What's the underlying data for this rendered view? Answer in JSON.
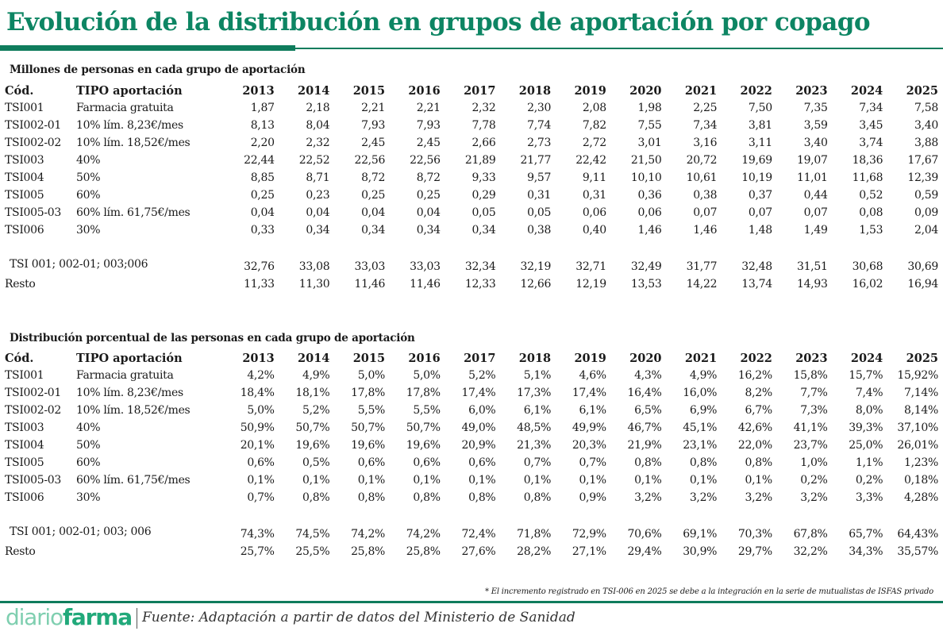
{
  "title": "Evolución de la distribución en grupos de aportación por copago",
  "colors": {
    "brand_green": "#0d8563",
    "logo_light": "#7fcfb0",
    "logo_bold": "#21a97a"
  },
  "table_millions": {
    "heading": "Millones de personas en cada grupo de aportación",
    "headers": {
      "code": "Cód.",
      "type": "TIPO aportación",
      "years": [
        "2013",
        "2014",
        "2015",
        "2016",
        "2017",
        "2018",
        "2019",
        "2020",
        "2021",
        "2022",
        "2023",
        "2024",
        "2025"
      ]
    },
    "rows": [
      {
        "code": "TSI001",
        "type": "Farmacia gratuita",
        "values": [
          "1,87",
          "2,18",
          "2,21",
          "2,21",
          "2,32",
          "2,30",
          "2,08",
          "1,98",
          "2,25",
          "7,50",
          "7,35",
          "7,34",
          "7,58"
        ]
      },
      {
        "code": "TSI002-01",
        "type": "10% lím. 8,23€/mes",
        "values": [
          "8,13",
          "8,04",
          "7,93",
          "7,93",
          "7,78",
          "7,74",
          "7,82",
          "7,55",
          "7,34",
          "3,81",
          "3,59",
          "3,45",
          "3,40"
        ]
      },
      {
        "code": "TSI002-02",
        "type": "10% lím. 18,52€/mes",
        "values": [
          "2,20",
          "2,32",
          "2,45",
          "2,45",
          "2,66",
          "2,73",
          "2,72",
          "3,01",
          "3,16",
          "3,11",
          "3,40",
          "3,74",
          "3,88"
        ]
      },
      {
        "code": "TSI003",
        "type": "40%",
        "values": [
          "22,44",
          "22,52",
          "22,56",
          "22,56",
          "21,89",
          "21,77",
          "22,42",
          "21,50",
          "20,72",
          "19,69",
          "19,07",
          "18,36",
          "17,67"
        ]
      },
      {
        "code": "TSI004",
        "type": "50%",
        "values": [
          "8,85",
          "8,71",
          "8,72",
          "8,72",
          "9,33",
          "9,57",
          "9,11",
          "10,10",
          "10,61",
          "10,19",
          "11,01",
          "11,68",
          "12,39"
        ]
      },
      {
        "code": "TSI005",
        "type": "60%",
        "values": [
          "0,25",
          "0,23",
          "0,25",
          "0,25",
          "0,29",
          "0,31",
          "0,31",
          "0,36",
          "0,38",
          "0,37",
          "0,44",
          "0,52",
          "0,59"
        ]
      },
      {
        "code": "TSI005-03",
        "type": "60% lím. 61,75€/mes",
        "values": [
          "0,04",
          "0,04",
          "0,04",
          "0,04",
          "0,05",
          "0,05",
          "0,06",
          "0,06",
          "0,07",
          "0,07",
          "0,07",
          "0,08",
          "0,09"
        ]
      },
      {
        "code": "TSI006",
        "type": "30%",
        "values": [
          "0,33",
          "0,34",
          "0,34",
          "0,34",
          "0,34",
          "0,38",
          "0,40",
          "1,46",
          "1,46",
          "1,48",
          "1,49",
          "1,53",
          "2,04"
        ]
      }
    ],
    "totals": [
      {
        "label": "TSI 001; 002-01; 003;006",
        "values": [
          "32,76",
          "33,08",
          "33,03",
          "33,03",
          "32,34",
          "32,19",
          "32,71",
          "32,49",
          "31,77",
          "32,48",
          "31,51",
          "30,68",
          "30,69"
        ]
      },
      {
        "label": "Resto",
        "values": [
          "11,33",
          "11,30",
          "11,46",
          "11,46",
          "12,33",
          "12,66",
          "12,19",
          "13,53",
          "14,22",
          "13,74",
          "14,93",
          "16,02",
          "16,94"
        ]
      }
    ]
  },
  "table_percent": {
    "heading": "Distribución porcentual de las personas en cada grupo de aportación",
    "headers": {
      "code": "Cód.",
      "type": "TIPO aportación",
      "years": [
        "2013",
        "2014",
        "2015",
        "2016",
        "2017",
        "2018",
        "2019",
        "2020",
        "2021",
        "2022",
        "2023",
        "2024",
        "2025"
      ]
    },
    "rows": [
      {
        "code": "TSI001",
        "type": "Farmacia gratuita",
        "values": [
          "4,2%",
          "4,9%",
          "5,0%",
          "5,0%",
          "5,2%",
          "5,1%",
          "4,6%",
          "4,3%",
          "4,9%",
          "16,2%",
          "15,8%",
          "15,7%",
          "15,92%"
        ]
      },
      {
        "code": "TSI002-01",
        "type": "10% lím. 8,23€/mes",
        "values": [
          "18,4%",
          "18,1%",
          "17,8%",
          "17,8%",
          "17,4%",
          "17,3%",
          "17,4%",
          "16,4%",
          "16,0%",
          "8,2%",
          "7,7%",
          "7,4%",
          "7,14%"
        ]
      },
      {
        "code": "TSI002-02",
        "type": "10% lím. 18,52€/mes",
        "values": [
          "5,0%",
          "5,2%",
          "5,5%",
          "5,5%",
          "6,0%",
          "6,1%",
          "6,1%",
          "6,5%",
          "6,9%",
          "6,7%",
          "7,3%",
          "8,0%",
          "8,14%"
        ]
      },
      {
        "code": "TSI003",
        "type": "40%",
        "values": [
          "50,9%",
          "50,7%",
          "50,7%",
          "50,7%",
          "49,0%",
          "48,5%",
          "49,9%",
          "46,7%",
          "45,1%",
          "42,6%",
          "41,1%",
          "39,3%",
          "37,10%"
        ]
      },
      {
        "code": "TSI004",
        "type": "50%",
        "values": [
          "20,1%",
          "19,6%",
          "19,6%",
          "19,6%",
          "20,9%",
          "21,3%",
          "20,3%",
          "21,9%",
          "23,1%",
          "22,0%",
          "23,7%",
          "25,0%",
          "26,01%"
        ]
      },
      {
        "code": "TSI005",
        "type": "60%",
        "values": [
          "0,6%",
          "0,5%",
          "0,6%",
          "0,6%",
          "0,6%",
          "0,7%",
          "0,7%",
          "0,8%",
          "0,8%",
          "0,8%",
          "1,0%",
          "1,1%",
          "1,23%"
        ]
      },
      {
        "code": "TSI005-03",
        "type": "60% lím. 61,75€/mes",
        "values": [
          "0,1%",
          "0,1%",
          "0,1%",
          "0,1%",
          "0,1%",
          "0,1%",
          "0,1%",
          "0,1%",
          "0,1%",
          "0,1%",
          "0,2%",
          "0,2%",
          "0,18%"
        ]
      },
      {
        "code": "TSI006",
        "type": "30%",
        "values": [
          "0,7%",
          "0,8%",
          "0,8%",
          "0,8%",
          "0,8%",
          "0,8%",
          "0,9%",
          "3,2%",
          "3,2%",
          "3,2%",
          "3,2%",
          "3,3%",
          "4,28%"
        ]
      }
    ],
    "totals": [
      {
        "label": "TSI 001; 002-01; 003; 006",
        "values": [
          "74,3%",
          "74,5%",
          "74,2%",
          "74,2%",
          "72,4%",
          "71,8%",
          "72,9%",
          "70,6%",
          "69,1%",
          "70,3%",
          "67,8%",
          "65,7%",
          "64,43%"
        ]
      },
      {
        "label": "Resto",
        "values": [
          "25,7%",
          "25,5%",
          "25,8%",
          "25,8%",
          "27,6%",
          "28,2%",
          "27,1%",
          "29,4%",
          "30,9%",
          "29,7%",
          "32,2%",
          "34,3%",
          "35,57%"
        ]
      }
    ]
  },
  "footnote": "* El incremento registrado en TSI-006 en 2025 se debe a la integración en la serie de mutualistas de ISFAS privado",
  "footer": {
    "logo_light": "diario",
    "logo_bold": "farma",
    "source": "Fuente: Adaptación a partir de datos del Ministerio de Sanidad"
  }
}
